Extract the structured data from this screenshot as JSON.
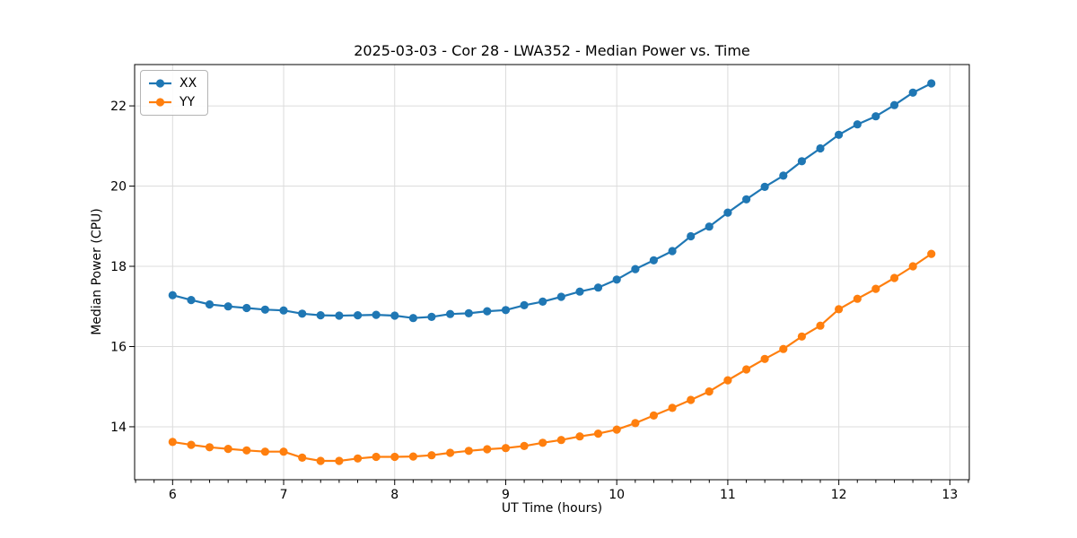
{
  "figure": {
    "title": "2025-03-03 - Cor 28 - LWA352 - Median Power vs. Time"
  },
  "chart_data": {
    "type": "line",
    "title": "2025-03-03 - Cor 28 - LWA352 - Median Power vs. Time",
    "xlabel": "UT Time (hours)",
    "ylabel": "Median Power (CPU)",
    "marker": "o",
    "grid": true,
    "legend_position": "upper-left",
    "xlim": [
      5.658,
      13.175
    ],
    "ylim": [
      12.68,
      23.03
    ],
    "xticks": [
      6,
      7,
      8,
      9,
      10,
      11,
      12,
      13
    ],
    "yticks": [
      14,
      16,
      18,
      20,
      22
    ],
    "x_minor_tick_step_hours": 0.1667,
    "grid_color": "#dcdcdc",
    "axis_color": "#000000",
    "x": [
      6.0,
      6.167,
      6.333,
      6.5,
      6.667,
      6.833,
      7.0,
      7.167,
      7.333,
      7.5,
      7.667,
      7.833,
      8.0,
      8.167,
      8.333,
      8.5,
      8.667,
      8.833,
      9.0,
      9.167,
      9.333,
      9.5,
      9.667,
      9.833,
      10.0,
      10.167,
      10.333,
      10.5,
      10.667,
      10.833,
      11.0,
      11.167,
      11.333,
      11.5,
      11.667,
      11.833,
      12.0,
      12.167,
      12.333,
      12.5,
      12.667,
      12.833
    ],
    "series": [
      {
        "name": "XX",
        "color": "#1f77b4",
        "values": [
          17.28,
          17.16,
          17.05,
          17.0,
          16.96,
          16.92,
          16.9,
          16.82,
          16.78,
          16.77,
          16.78,
          16.79,
          16.77,
          16.71,
          16.74,
          16.81,
          16.83,
          16.88,
          16.91,
          17.03,
          17.12,
          17.24,
          17.37,
          17.47,
          17.67,
          17.93,
          18.15,
          18.38,
          18.75,
          18.99,
          19.34,
          19.67,
          19.98,
          20.26,
          20.62,
          20.94,
          21.28,
          21.54,
          21.74,
          22.02,
          22.33,
          22.56
        ]
      },
      {
        "name": "YY",
        "color": "#ff7f0e",
        "values": [
          13.62,
          13.55,
          13.49,
          13.45,
          13.41,
          13.38,
          13.38,
          13.23,
          13.15,
          13.15,
          13.21,
          13.25,
          13.25,
          13.26,
          13.29,
          13.35,
          13.4,
          13.44,
          13.47,
          13.52,
          13.6,
          13.67,
          13.76,
          13.83,
          13.93,
          14.09,
          14.28,
          14.47,
          14.67,
          14.88,
          15.16,
          15.43,
          15.69,
          15.94,
          16.25,
          16.52,
          16.93,
          17.19,
          17.44,
          17.71,
          18.0,
          18.31
        ]
      }
    ]
  }
}
